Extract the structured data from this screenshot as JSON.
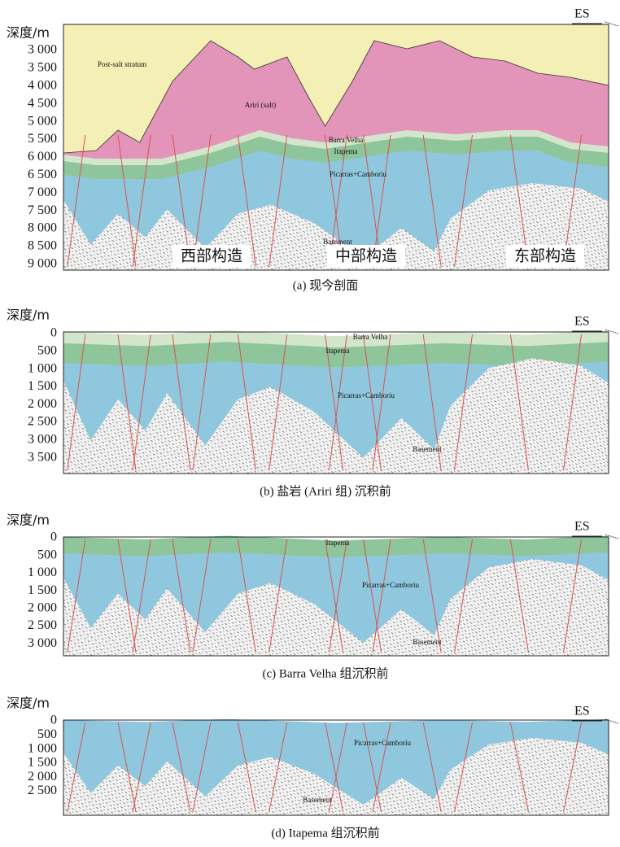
{
  "panels": [
    {
      "depth_label": "深度/m",
      "es_label": "ES",
      "depth_ticks": [
        "3 000",
        "3 500",
        "4 000",
        "4 500",
        "5 000",
        "5 500",
        "6 000",
        "6 500",
        "7 000",
        "7 500",
        "8 000",
        "8 500",
        "9 000"
      ],
      "layer_labels": [
        "Post-salt stratum",
        "Ariri (salt)",
        "Barra Velha",
        "Itapema",
        "Picarras+Camboriu",
        "Basement"
      ],
      "region_labels": [
        "西部构造",
        "中部构造",
        "东部构造"
      ],
      "caption": "(a) 现今剖面"
    },
    {
      "depth_label": "深度/m",
      "es_label": "ES",
      "depth_ticks": [
        "0",
        "500",
        "1 000",
        "1 500",
        "2 000",
        "2 500",
        "3 000",
        "3 500"
      ],
      "layer_labels": [
        "Barra Velha",
        "Itapema",
        "Picarras+Camboriu",
        "Basement"
      ],
      "caption": "(b) 盐岩 (Ariri 组) 沉积前"
    },
    {
      "depth_label": "深度/m",
      "es_label": "ES",
      "depth_ticks": [
        "0",
        "500",
        "1 000",
        "1 500",
        "2 000",
        "2 500",
        "3 000"
      ],
      "layer_labels": [
        "Itapema",
        "Picarras+Camboriu",
        "Basement"
      ],
      "caption": "(c) Barra Velha 组沉积前"
    },
    {
      "depth_label": "深度/m",
      "es_label": "ES",
      "depth_ticks": [
        "0",
        "500",
        "1 000",
        "1 500",
        "2 000",
        "2 500"
      ],
      "layer_labels": [
        "Picarras+Camboriu",
        "Basement"
      ],
      "caption": "(d) Itapema 组沉积前"
    }
  ]
}
